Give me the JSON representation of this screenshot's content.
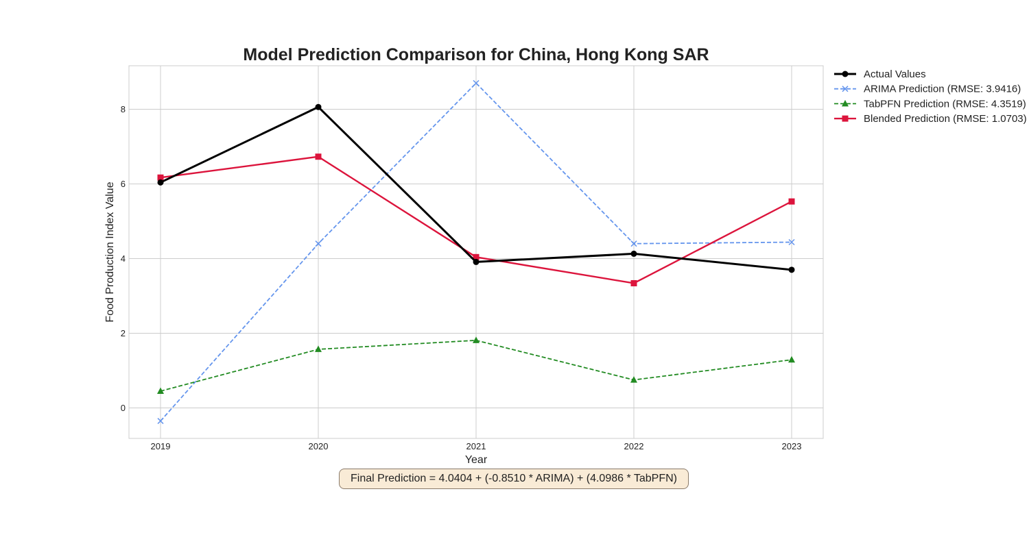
{
  "chart_data": {
    "type": "line",
    "title": "Model Prediction Comparison for China, Hong Kong SAR",
    "xlabel": "Year",
    "ylabel": "Food Production Index Value",
    "x": [
      2019,
      2020,
      2021,
      2022,
      2023
    ],
    "x_tick_labels": [
      "2019",
      "2020",
      "2021",
      "2022",
      "2023"
    ],
    "ylim": [
      -0.8,
      9.15
    ],
    "y_ticks": [
      0,
      2,
      4,
      6,
      8
    ],
    "grid": true,
    "legend_position": "outside top-right",
    "series": [
      {
        "name": "Actual Values",
        "values": [
          6.04,
          8.06,
          3.91,
          4.13,
          3.7
        ],
        "color": "#000000",
        "style": "solid",
        "marker": "circle"
      },
      {
        "name": "ARIMA Prediction (RMSE: 3.9416)",
        "values": [
          -0.35,
          4.4,
          8.7,
          4.4,
          4.44
        ],
        "color": "#6495ed",
        "style": "dashed",
        "marker": "x"
      },
      {
        "name": "TabPFN Prediction (RMSE: 4.3519)",
        "values": [
          0.45,
          1.57,
          1.81,
          0.75,
          1.29
        ],
        "color": "#228b22",
        "style": "dashed",
        "marker": "triangle"
      },
      {
        "name": "Blended Prediction (RMSE: 1.0703)",
        "values": [
          6.17,
          6.73,
          4.04,
          3.34,
          5.53
        ],
        "color": "#dc143c",
        "style": "solid",
        "marker": "square"
      }
    ],
    "annotation": "Final Prediction = 4.0404 + (-0.8510 * ARIMA) + (4.0986 * TabPFN)"
  }
}
